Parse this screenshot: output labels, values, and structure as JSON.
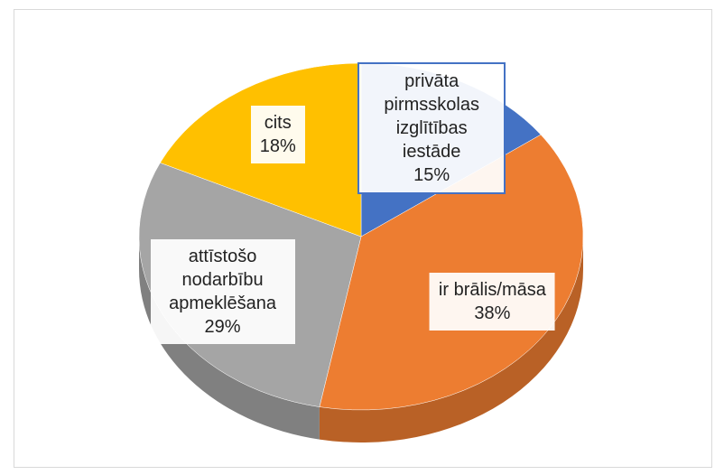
{
  "chart_data": {
    "type": "pie",
    "categories": [
      "privāta pirmsskolas izglītības iestāde",
      "ir brālis/māsa",
      "attīstošo nodarbību apmeklēšana",
      "cits"
    ],
    "values": [
      15,
      38,
      29,
      18
    ],
    "value_labels": [
      "15%",
      "38%",
      "29%",
      "18%"
    ],
    "colors": [
      "#4472c4",
      "#ed7d31",
      "#a5a5a5",
      "#ffc000"
    ]
  }
}
